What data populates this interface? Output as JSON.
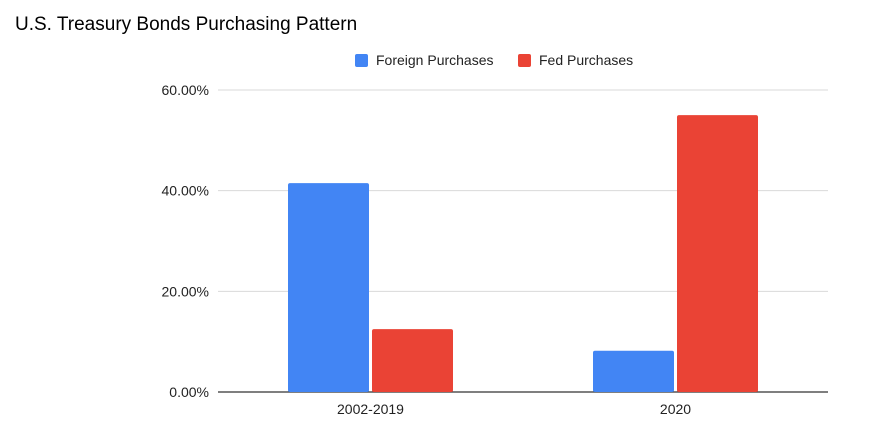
{
  "chart_data": {
    "type": "bar",
    "title": "U.S. Treasury Bonds Purchasing Pattern",
    "xlabel": "",
    "ylabel": "",
    "categories": [
      "2002-2019",
      "2020"
    ],
    "series": [
      {
        "name": "Foreign Purchases",
        "color": "#4285f4",
        "values": [
          41.5,
          8.2
        ]
      },
      {
        "name": "Fed Purchases",
        "color": "#ea4335",
        "values": [
          12.5,
          55.0
        ]
      }
    ],
    "ylim": [
      0,
      60
    ],
    "yticks": [
      {
        "value": 0,
        "label": "0.00%"
      },
      {
        "value": 20,
        "label": "20.00%"
      },
      {
        "value": 40,
        "label": "40.00%"
      },
      {
        "value": 60,
        "label": "60.00%"
      }
    ],
    "grid": true,
    "legend_position": "top"
  }
}
